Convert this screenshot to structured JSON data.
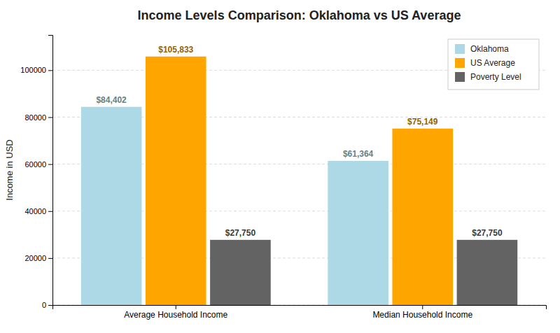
{
  "chart_data": {
    "type": "bar",
    "title": "Income Levels Comparison: Oklahoma vs US Average",
    "ylabel": "Income in USD",
    "categories": [
      "Average Household Income",
      "Median Household Income"
    ],
    "series": [
      {
        "name": "Oklahoma",
        "color": "#add8e6",
        "values": [
          84402,
          61364
        ],
        "value_labels": [
          "$84,402",
          "$61,364"
        ]
      },
      {
        "name": "US Average",
        "color": "#FFA500",
        "values": [
          105833,
          75149
        ],
        "value_labels": [
          "$105,833",
          "$75,149"
        ]
      },
      {
        "name": "Poverty Level",
        "color": "#636363",
        "values": [
          27750,
          27750
        ],
        "value_labels": [
          "$27,750",
          "$27,750"
        ]
      }
    ],
    "ylim": [
      0,
      115000
    ],
    "yticks": [
      0,
      20000,
      40000,
      60000,
      80000,
      100000
    ],
    "grid": true,
    "legend": "upper right",
    "data_labels": true
  }
}
